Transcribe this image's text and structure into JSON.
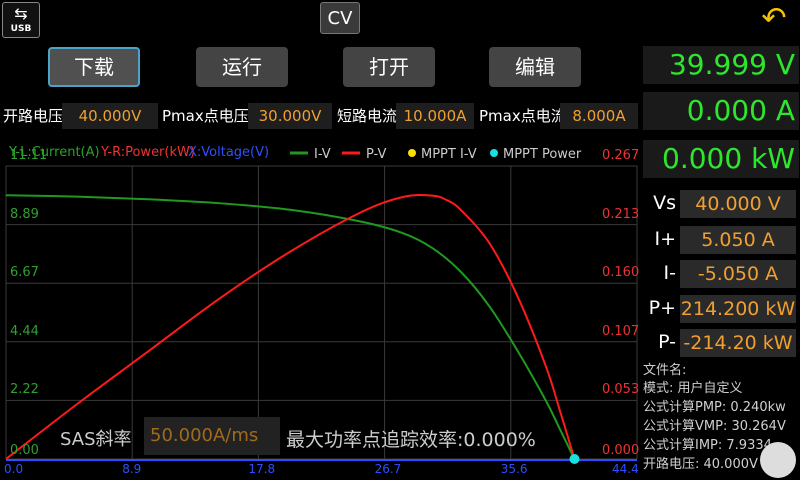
{
  "topbar": {
    "usb_label": "USB",
    "mode_label": "CV"
  },
  "buttons": {
    "download": "下载",
    "run": "运行",
    "open": "打开",
    "edit": "编辑"
  },
  "readouts": {
    "voltage": "39.999 V",
    "current": "0.000 A",
    "power": "0.000 kW"
  },
  "params": {
    "voc_label": "开路电压",
    "voc_value": "40.000V",
    "vmp_label": "Pmax点电压",
    "vmp_value": "30.000V",
    "isc_label": "短路电流",
    "isc_value": "10.000A",
    "imp_label": "Pmax点电流",
    "imp_value": "8.000A"
  },
  "limits": {
    "vs_label": "Vs",
    "vs_value": "40.000 V",
    "ip_label": "I+",
    "ip_value": "5.050 A",
    "in_label": "I-",
    "in_value": "-5.050 A",
    "pp_label": "P+",
    "pp_value": "214.200 kW",
    "pn_label": "P-",
    "pn_value": "-214.20 kW"
  },
  "info": {
    "filename": "文件名:",
    "mode": "模式: 用户自定义",
    "pmp": "公式计算PMP: 0.240kw",
    "vmp": "公式计算VMP: 30.264V",
    "imp": "公式计算IMP: 7.9334",
    "voc": "开路电压: 40.000V"
  },
  "sas": {
    "label": "SAS斜率",
    "value": "50.000A/ms",
    "mppt_eff": "最大功率点追踪效率:0.000%"
  },
  "chart_data": {
    "type": "line",
    "axis_left_title": "Y-L:Current(A)",
    "axis_right_title": "Y-R:Power(kW)",
    "axis_x_title": "X:Voltage(V)",
    "legend": [
      "I-V",
      "P-V",
      "MPPT I-V",
      "MPPT Power"
    ],
    "colors": {
      "iv": "#1f9a1f",
      "pv": "#ff1a1a",
      "mppt_iv": "#f5e000",
      "mppt_power": "#18e0e0"
    },
    "x_ticks": [
      "0.0",
      "8.9",
      "17.8",
      "26.7",
      "35.6",
      "44.4"
    ],
    "yl_ticks": [
      "0.00",
      "2.22",
      "4.44",
      "6.67",
      "8.89",
      "11.11"
    ],
    "yr_ticks": [
      "0.000",
      "0.053",
      "0.107",
      "0.160",
      "0.213",
      "0.267"
    ],
    "xlim": [
      0,
      44.4
    ],
    "yl_lim": [
      0,
      11.11
    ],
    "yr_lim": [
      0,
      0.267
    ],
    "series": [
      {
        "name": "I-V",
        "axis": "left",
        "x": [
          0,
          5,
          10,
          15,
          20,
          25,
          28,
          30,
          32,
          34,
          36,
          38,
          39,
          40
        ],
        "y": [
          10.0,
          9.95,
          9.85,
          9.7,
          9.45,
          9.0,
          8.55,
          8.0,
          7.1,
          5.8,
          4.1,
          2.2,
          1.1,
          0.0
        ]
      },
      {
        "name": "P-V",
        "axis": "right",
        "x": [
          0,
          5,
          10,
          15,
          20,
          25,
          28,
          30,
          31,
          32,
          34,
          36,
          38,
          39,
          40
        ],
        "y": [
          0.0,
          0.05,
          0.098,
          0.146,
          0.189,
          0.225,
          0.239,
          0.24,
          0.236,
          0.227,
          0.197,
          0.148,
          0.084,
          0.043,
          0.0
        ]
      },
      {
        "name": "MPPT Power",
        "axis": "right",
        "x": [
          40
        ],
        "y": [
          0.0
        ]
      }
    ]
  }
}
